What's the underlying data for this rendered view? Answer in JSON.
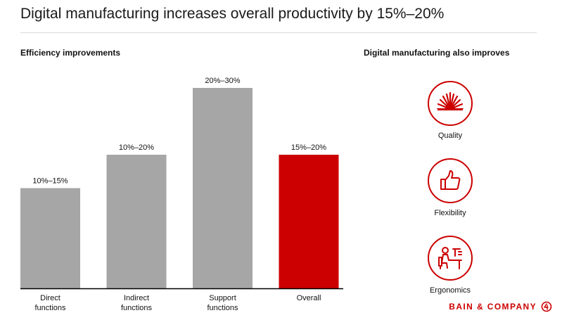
{
  "title": "Digital manufacturing increases overall productivity by 15%–20%",
  "left_heading": "Efficiency improvements",
  "right_heading": "Digital manufacturing also improves",
  "improvements": [
    {
      "label": "Quality",
      "icon": "sunburst-icon"
    },
    {
      "label": "Flexibility",
      "icon": "thumbs-up-icon"
    },
    {
      "label": "Ergonomics",
      "icon": "worker-at-desk-icon"
    }
  ],
  "brand": "BAIN & COMPANY",
  "colors": {
    "gray_bar": "#a6a6a6",
    "accent": "#cc0000",
    "baseline": "#000000"
  },
  "chart_data": {
    "type": "bar",
    "title": "Efficiency improvements",
    "xlabel": "",
    "ylabel": "",
    "categories": [
      [
        "Direct",
        "functions"
      ],
      [
        "Indirect",
        "functions"
      ],
      [
        "Support",
        "functions"
      ],
      [
        "Overall"
      ]
    ],
    "ranges": [
      [
        10,
        15
      ],
      [
        10,
        20
      ],
      [
        20,
        30
      ],
      [
        15,
        20
      ]
    ],
    "values": [
      15,
      20,
      30,
      20
    ],
    "data_labels": [
      "10%–15%",
      "10%–20%",
      "20%–30%",
      "15%–20%"
    ],
    "highlight": [
      false,
      false,
      false,
      true
    ],
    "ylim": [
      0,
      30
    ],
    "grid": false
  }
}
